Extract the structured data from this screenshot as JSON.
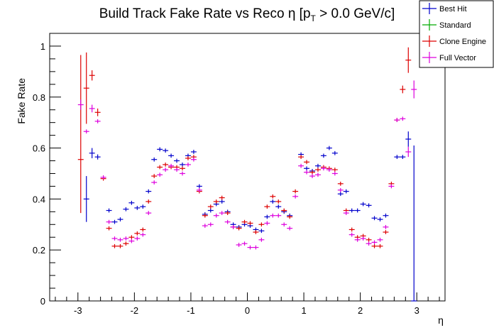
{
  "chart_data": {
    "type": "scatter",
    "title": "Build Track Fake Rate vs Reco η [p_T > 0.0 GeV/c]",
    "title_parts": {
      "main": "Build Track Fake Rate vs Reco η [p",
      "sub": "T",
      "tail": " > 0.0 GeV/c]"
    },
    "xlabel": "η",
    "ylabel": "Fake Rate",
    "xlim": [
      -3.5,
      3.5
    ],
    "ylim": [
      0,
      1.05
    ],
    "x_ticks": [
      -3,
      -2,
      -1,
      0,
      1,
      2,
      3
    ],
    "x_tick_labels": [
      "-3",
      "-2",
      "-1",
      "0",
      "1",
      "2",
      "3"
    ],
    "y_ticks": [
      0,
      0.2,
      0.4,
      0.6,
      0.8,
      1
    ],
    "y_tick_labels": [
      "0",
      "0.2",
      "0.4",
      "0.6",
      "0.8",
      "1"
    ],
    "grid": false,
    "legend_position": "top-right",
    "bin_half_width": 0.05,
    "series": [
      {
        "name": "Best Hit",
        "color": "#0000cc",
        "points": [
          {
            "x": -2.85,
            "y": 0.4,
            "err": 0.09
          },
          {
            "x": -2.75,
            "y": 0.58,
            "err": 0.02
          },
          {
            "x": -2.65,
            "y": 0.565,
            "err": 0.01
          },
          {
            "x": -2.45,
            "y": 0.355
          },
          {
            "x": -2.35,
            "y": 0.31
          },
          {
            "x": -2.25,
            "y": 0.32
          },
          {
            "x": -2.15,
            "y": 0.36
          },
          {
            "x": -2.05,
            "y": 0.385
          },
          {
            "x": -1.95,
            "y": 0.365
          },
          {
            "x": -1.85,
            "y": 0.37
          },
          {
            "x": -1.75,
            "y": 0.43
          },
          {
            "x": -1.65,
            "y": 0.555
          },
          {
            "x": -1.55,
            "y": 0.595
          },
          {
            "x": -1.45,
            "y": 0.59
          },
          {
            "x": -1.35,
            "y": 0.57
          },
          {
            "x": -1.25,
            "y": 0.55
          },
          {
            "x": -1.15,
            "y": 0.535
          },
          {
            "x": -1.05,
            "y": 0.57
          },
          {
            "x": -0.95,
            "y": 0.585
          },
          {
            "x": -0.85,
            "y": 0.45
          },
          {
            "x": -0.75,
            "y": 0.34
          },
          {
            "x": -0.65,
            "y": 0.355
          },
          {
            "x": -0.55,
            "y": 0.38
          },
          {
            "x": -0.45,
            "y": 0.39
          },
          {
            "x": -0.35,
            "y": 0.35
          },
          {
            "x": -0.25,
            "y": 0.3
          },
          {
            "x": -0.15,
            "y": 0.29
          },
          {
            "x": -0.05,
            "y": 0.3
          },
          {
            "x": 0.05,
            "y": 0.295
          },
          {
            "x": 0.15,
            "y": 0.28
          },
          {
            "x": 0.25,
            "y": 0.275
          },
          {
            "x": 0.35,
            "y": 0.33
          },
          {
            "x": 0.45,
            "y": 0.39
          },
          {
            "x": 0.55,
            "y": 0.37
          },
          {
            "x": 0.65,
            "y": 0.35
          },
          {
            "x": 0.75,
            "y": 0.335
          },
          {
            "x": 0.95,
            "y": 0.575
          },
          {
            "x": 1.05,
            "y": 0.52
          },
          {
            "x": 1.15,
            "y": 0.51
          },
          {
            "x": 1.25,
            "y": 0.53
          },
          {
            "x": 1.35,
            "y": 0.57
          },
          {
            "x": 1.45,
            "y": 0.6
          },
          {
            "x": 1.55,
            "y": 0.58
          },
          {
            "x": 1.65,
            "y": 0.42
          },
          {
            "x": 1.75,
            "y": 0.43
          },
          {
            "x": 1.85,
            "y": 0.355
          },
          {
            "x": 1.95,
            "y": 0.355
          },
          {
            "x": 2.05,
            "y": 0.38
          },
          {
            "x": 2.15,
            "y": 0.375
          },
          {
            "x": 2.25,
            "y": 0.325
          },
          {
            "x": 2.35,
            "y": 0.32
          },
          {
            "x": 2.45,
            "y": 0.335
          },
          {
            "x": 2.65,
            "y": 0.565
          },
          {
            "x": 2.75,
            "y": 0.565
          },
          {
            "x": 2.85,
            "y": 0.635,
            "err": 0.03
          },
          {
            "x": 2.95,
            "y": 0.0,
            "err": 0.61,
            "err_low": 0.0
          }
        ]
      },
      {
        "name": "Standard",
        "color": "#00aa00",
        "points": []
      },
      {
        "name": "Clone Engine",
        "color": "#dd0000",
        "points": [
          {
            "x": -2.95,
            "y": 0.555,
            "err": 0.21,
            "err_high": 0.41
          },
          {
            "x": -2.85,
            "y": 0.835,
            "err": 0.14
          },
          {
            "x": -2.75,
            "y": 0.885,
            "err": 0.02
          },
          {
            "x": -2.65,
            "y": 0.74,
            "err": 0.015
          },
          {
            "x": -2.55,
            "y": 0.48
          },
          {
            "x": -2.45,
            "y": 0.285
          },
          {
            "x": -2.35,
            "y": 0.215
          },
          {
            "x": -2.25,
            "y": 0.215
          },
          {
            "x": -2.15,
            "y": 0.225
          },
          {
            "x": -2.05,
            "y": 0.25
          },
          {
            "x": -1.95,
            "y": 0.265
          },
          {
            "x": -1.85,
            "y": 0.28
          },
          {
            "x": -1.75,
            "y": 0.39
          },
          {
            "x": -1.65,
            "y": 0.49
          },
          {
            "x": -1.55,
            "y": 0.525
          },
          {
            "x": -1.45,
            "y": 0.535
          },
          {
            "x": -1.35,
            "y": 0.525
          },
          {
            "x": -1.25,
            "y": 0.525
          },
          {
            "x": -1.15,
            "y": 0.52
          },
          {
            "x": -1.05,
            "y": 0.56
          },
          {
            "x": -0.95,
            "y": 0.565
          },
          {
            "x": -0.85,
            "y": 0.43
          },
          {
            "x": -0.75,
            "y": 0.335
          },
          {
            "x": -0.65,
            "y": 0.37
          },
          {
            "x": -0.55,
            "y": 0.39
          },
          {
            "x": -0.45,
            "y": 0.405
          },
          {
            "x": -0.35,
            "y": 0.345
          },
          {
            "x": -0.25,
            "y": 0.29
          },
          {
            "x": -0.15,
            "y": 0.285
          },
          {
            "x": -0.05,
            "y": 0.31
          },
          {
            "x": 0.05,
            "y": 0.305
          },
          {
            "x": 0.15,
            "y": 0.27
          },
          {
            "x": 0.25,
            "y": 0.3
          },
          {
            "x": 0.35,
            "y": 0.37
          },
          {
            "x": 0.45,
            "y": 0.41
          },
          {
            "x": 0.55,
            "y": 0.39
          },
          {
            "x": 0.65,
            "y": 0.355
          },
          {
            "x": 0.75,
            "y": 0.33
          },
          {
            "x": 0.85,
            "y": 0.43
          },
          {
            "x": 0.95,
            "y": 0.565
          },
          {
            "x": 1.05,
            "y": 0.545
          },
          {
            "x": 1.15,
            "y": 0.505
          },
          {
            "x": 1.25,
            "y": 0.515
          },
          {
            "x": 1.35,
            "y": 0.525
          },
          {
            "x": 1.45,
            "y": 0.52
          },
          {
            "x": 1.55,
            "y": 0.515
          },
          {
            "x": 1.65,
            "y": 0.46
          },
          {
            "x": 1.75,
            "y": 0.355
          },
          {
            "x": 1.85,
            "y": 0.28
          },
          {
            "x": 1.95,
            "y": 0.25
          },
          {
            "x": 2.05,
            "y": 0.255
          },
          {
            "x": 2.15,
            "y": 0.24
          },
          {
            "x": 2.25,
            "y": 0.215
          },
          {
            "x": 2.35,
            "y": 0.215
          },
          {
            "x": 2.45,
            "y": 0.27
          },
          {
            "x": 2.55,
            "y": 0.46
          },
          {
            "x": 2.65,
            "y": 0.71
          },
          {
            "x": 2.75,
            "y": 0.83,
            "err": 0.015
          },
          {
            "x": 2.85,
            "y": 0.945,
            "err": 0.05
          }
        ]
      },
      {
        "name": "Full Vector",
        "color": "#dd00dd",
        "points": [
          {
            "x": -2.95,
            "y": 0.77,
            "err": 0.02
          },
          {
            "x": -2.85,
            "y": 0.665
          },
          {
            "x": -2.75,
            "y": 0.755,
            "err": 0.015
          },
          {
            "x": -2.65,
            "y": 0.705
          },
          {
            "x": -2.55,
            "y": 0.485
          },
          {
            "x": -2.45,
            "y": 0.31
          },
          {
            "x": -2.35,
            "y": 0.245
          },
          {
            "x": -2.25,
            "y": 0.24
          },
          {
            "x": -2.15,
            "y": 0.245
          },
          {
            "x": -2.05,
            "y": 0.235
          },
          {
            "x": -1.95,
            "y": 0.245
          },
          {
            "x": -1.85,
            "y": 0.26
          },
          {
            "x": -1.75,
            "y": 0.345
          },
          {
            "x": -1.65,
            "y": 0.465
          },
          {
            "x": -1.55,
            "y": 0.495
          },
          {
            "x": -1.45,
            "y": 0.515
          },
          {
            "x": -1.35,
            "y": 0.53
          },
          {
            "x": -1.25,
            "y": 0.515
          },
          {
            "x": -1.15,
            "y": 0.5
          },
          {
            "x": -1.05,
            "y": 0.535
          },
          {
            "x": -0.95,
            "y": 0.555
          },
          {
            "x": -0.85,
            "y": 0.435
          },
          {
            "x": -0.75,
            "y": 0.295
          },
          {
            "x": -0.65,
            "y": 0.3
          },
          {
            "x": -0.55,
            "y": 0.335
          },
          {
            "x": -0.45,
            "y": 0.345
          },
          {
            "x": -0.35,
            "y": 0.31
          },
          {
            "x": -0.25,
            "y": 0.29
          },
          {
            "x": -0.15,
            "y": 0.22
          },
          {
            "x": -0.05,
            "y": 0.225
          },
          {
            "x": 0.05,
            "y": 0.21
          },
          {
            "x": 0.15,
            "y": 0.21
          },
          {
            "x": 0.25,
            "y": 0.24
          },
          {
            "x": 0.35,
            "y": 0.305
          },
          {
            "x": 0.45,
            "y": 0.335
          },
          {
            "x": 0.55,
            "y": 0.335
          },
          {
            "x": 0.65,
            "y": 0.3
          },
          {
            "x": 0.75,
            "y": 0.285
          },
          {
            "x": 0.85,
            "y": 0.41
          },
          {
            "x": 0.95,
            "y": 0.53
          },
          {
            "x": 1.05,
            "y": 0.505
          },
          {
            "x": 1.15,
            "y": 0.49
          },
          {
            "x": 1.25,
            "y": 0.495
          },
          {
            "x": 1.35,
            "y": 0.52
          },
          {
            "x": 1.45,
            "y": 0.515
          },
          {
            "x": 1.55,
            "y": 0.5
          },
          {
            "x": 1.65,
            "y": 0.435
          },
          {
            "x": 1.75,
            "y": 0.345
          },
          {
            "x": 1.85,
            "y": 0.26
          },
          {
            "x": 1.95,
            "y": 0.24
          },
          {
            "x": 2.05,
            "y": 0.245
          },
          {
            "x": 2.15,
            "y": 0.225
          },
          {
            "x": 2.25,
            "y": 0.23
          },
          {
            "x": 2.35,
            "y": 0.24
          },
          {
            "x": 2.45,
            "y": 0.29
          },
          {
            "x": 2.55,
            "y": 0.45
          },
          {
            "x": 2.65,
            "y": 0.71
          },
          {
            "x": 2.75,
            "y": 0.715
          },
          {
            "x": 2.85,
            "y": 0.585,
            "err": 0.02
          },
          {
            "x": 2.95,
            "y": 0.83,
            "err": 0.035
          }
        ]
      }
    ]
  }
}
